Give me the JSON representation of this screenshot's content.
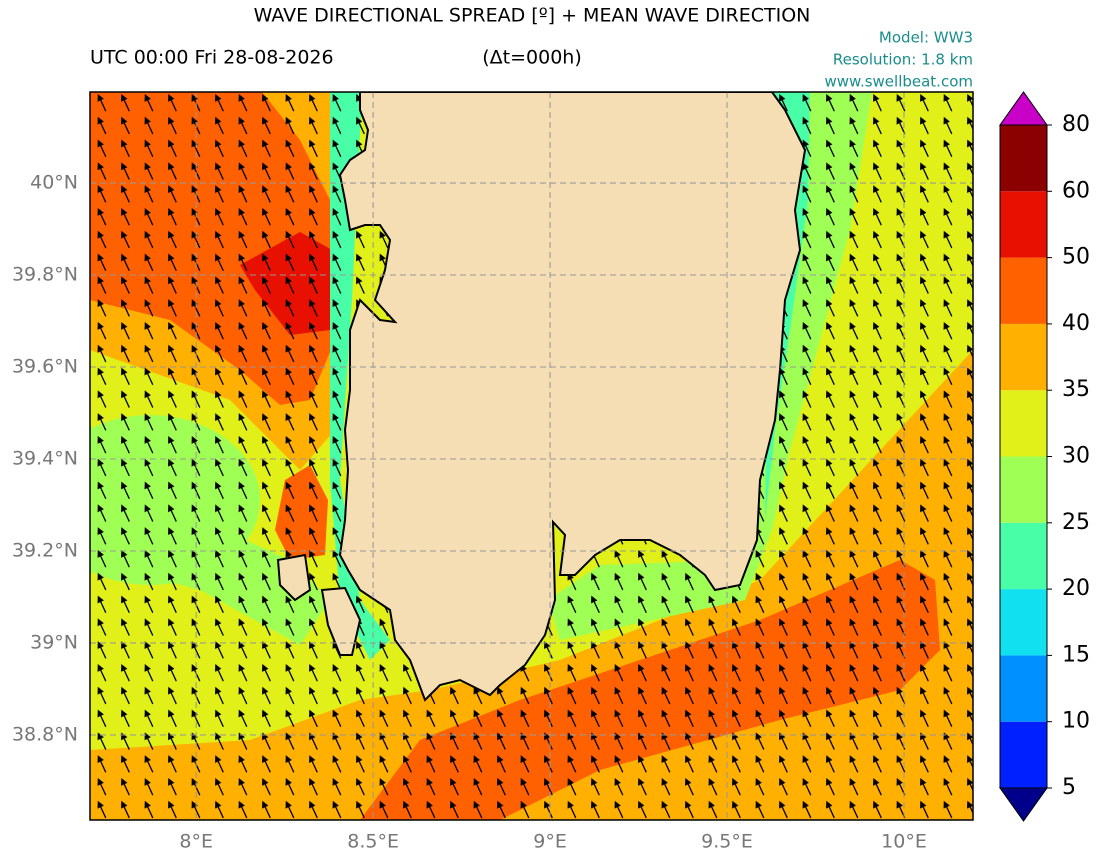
{
  "title": "WAVE DIRECTIONAL SPREAD [º] + MEAN WAVE DIRECTION",
  "time": "UTC 00:00 Fri 28-08-2026",
  "dt": "(Δt=000h)",
  "model": "Model: WW3",
  "resolution": "Resolution: 1.8 km",
  "website": "www.swellbeat.com",
  "map": {
    "xlim": [
      7.7,
      10.195
    ],
    "ylim": [
      38.615,
      40.198
    ],
    "xticks": [
      {
        "value": 8,
        "label": "8°E"
      },
      {
        "value": 8.5,
        "label": "8.5°E"
      },
      {
        "value": 9,
        "label": "9°E"
      },
      {
        "value": 9.5,
        "label": "9.5°E"
      },
      {
        "value": 10,
        "label": "10°E"
      }
    ],
    "yticks": [
      {
        "value": 38.8,
        "label": "38.8°N"
      },
      {
        "value": 39,
        "label": "39°N"
      },
      {
        "value": 39.2,
        "label": "39.2°N"
      },
      {
        "value": 39.4,
        "label": "39.4°N"
      },
      {
        "value": 39.6,
        "label": "39.6°N"
      },
      {
        "value": 39.8,
        "label": "39.8°N"
      },
      {
        "value": 40,
        "label": "40°N"
      }
    ],
    "grid": true
  },
  "colorbar": {
    "levels": [
      5,
      10,
      15,
      20,
      25,
      30,
      35,
      40,
      50,
      60,
      80
    ],
    "colors": [
      "#0020ff",
      "#0090ff",
      "#10e0f0",
      "#48ffa8",
      "#9fff55",
      "#e0f018",
      "#ffb000",
      "#ff6000",
      "#e81000",
      "#8b0000"
    ],
    "under_color": "#00008b",
    "over_color": "#c800c8"
  }
}
